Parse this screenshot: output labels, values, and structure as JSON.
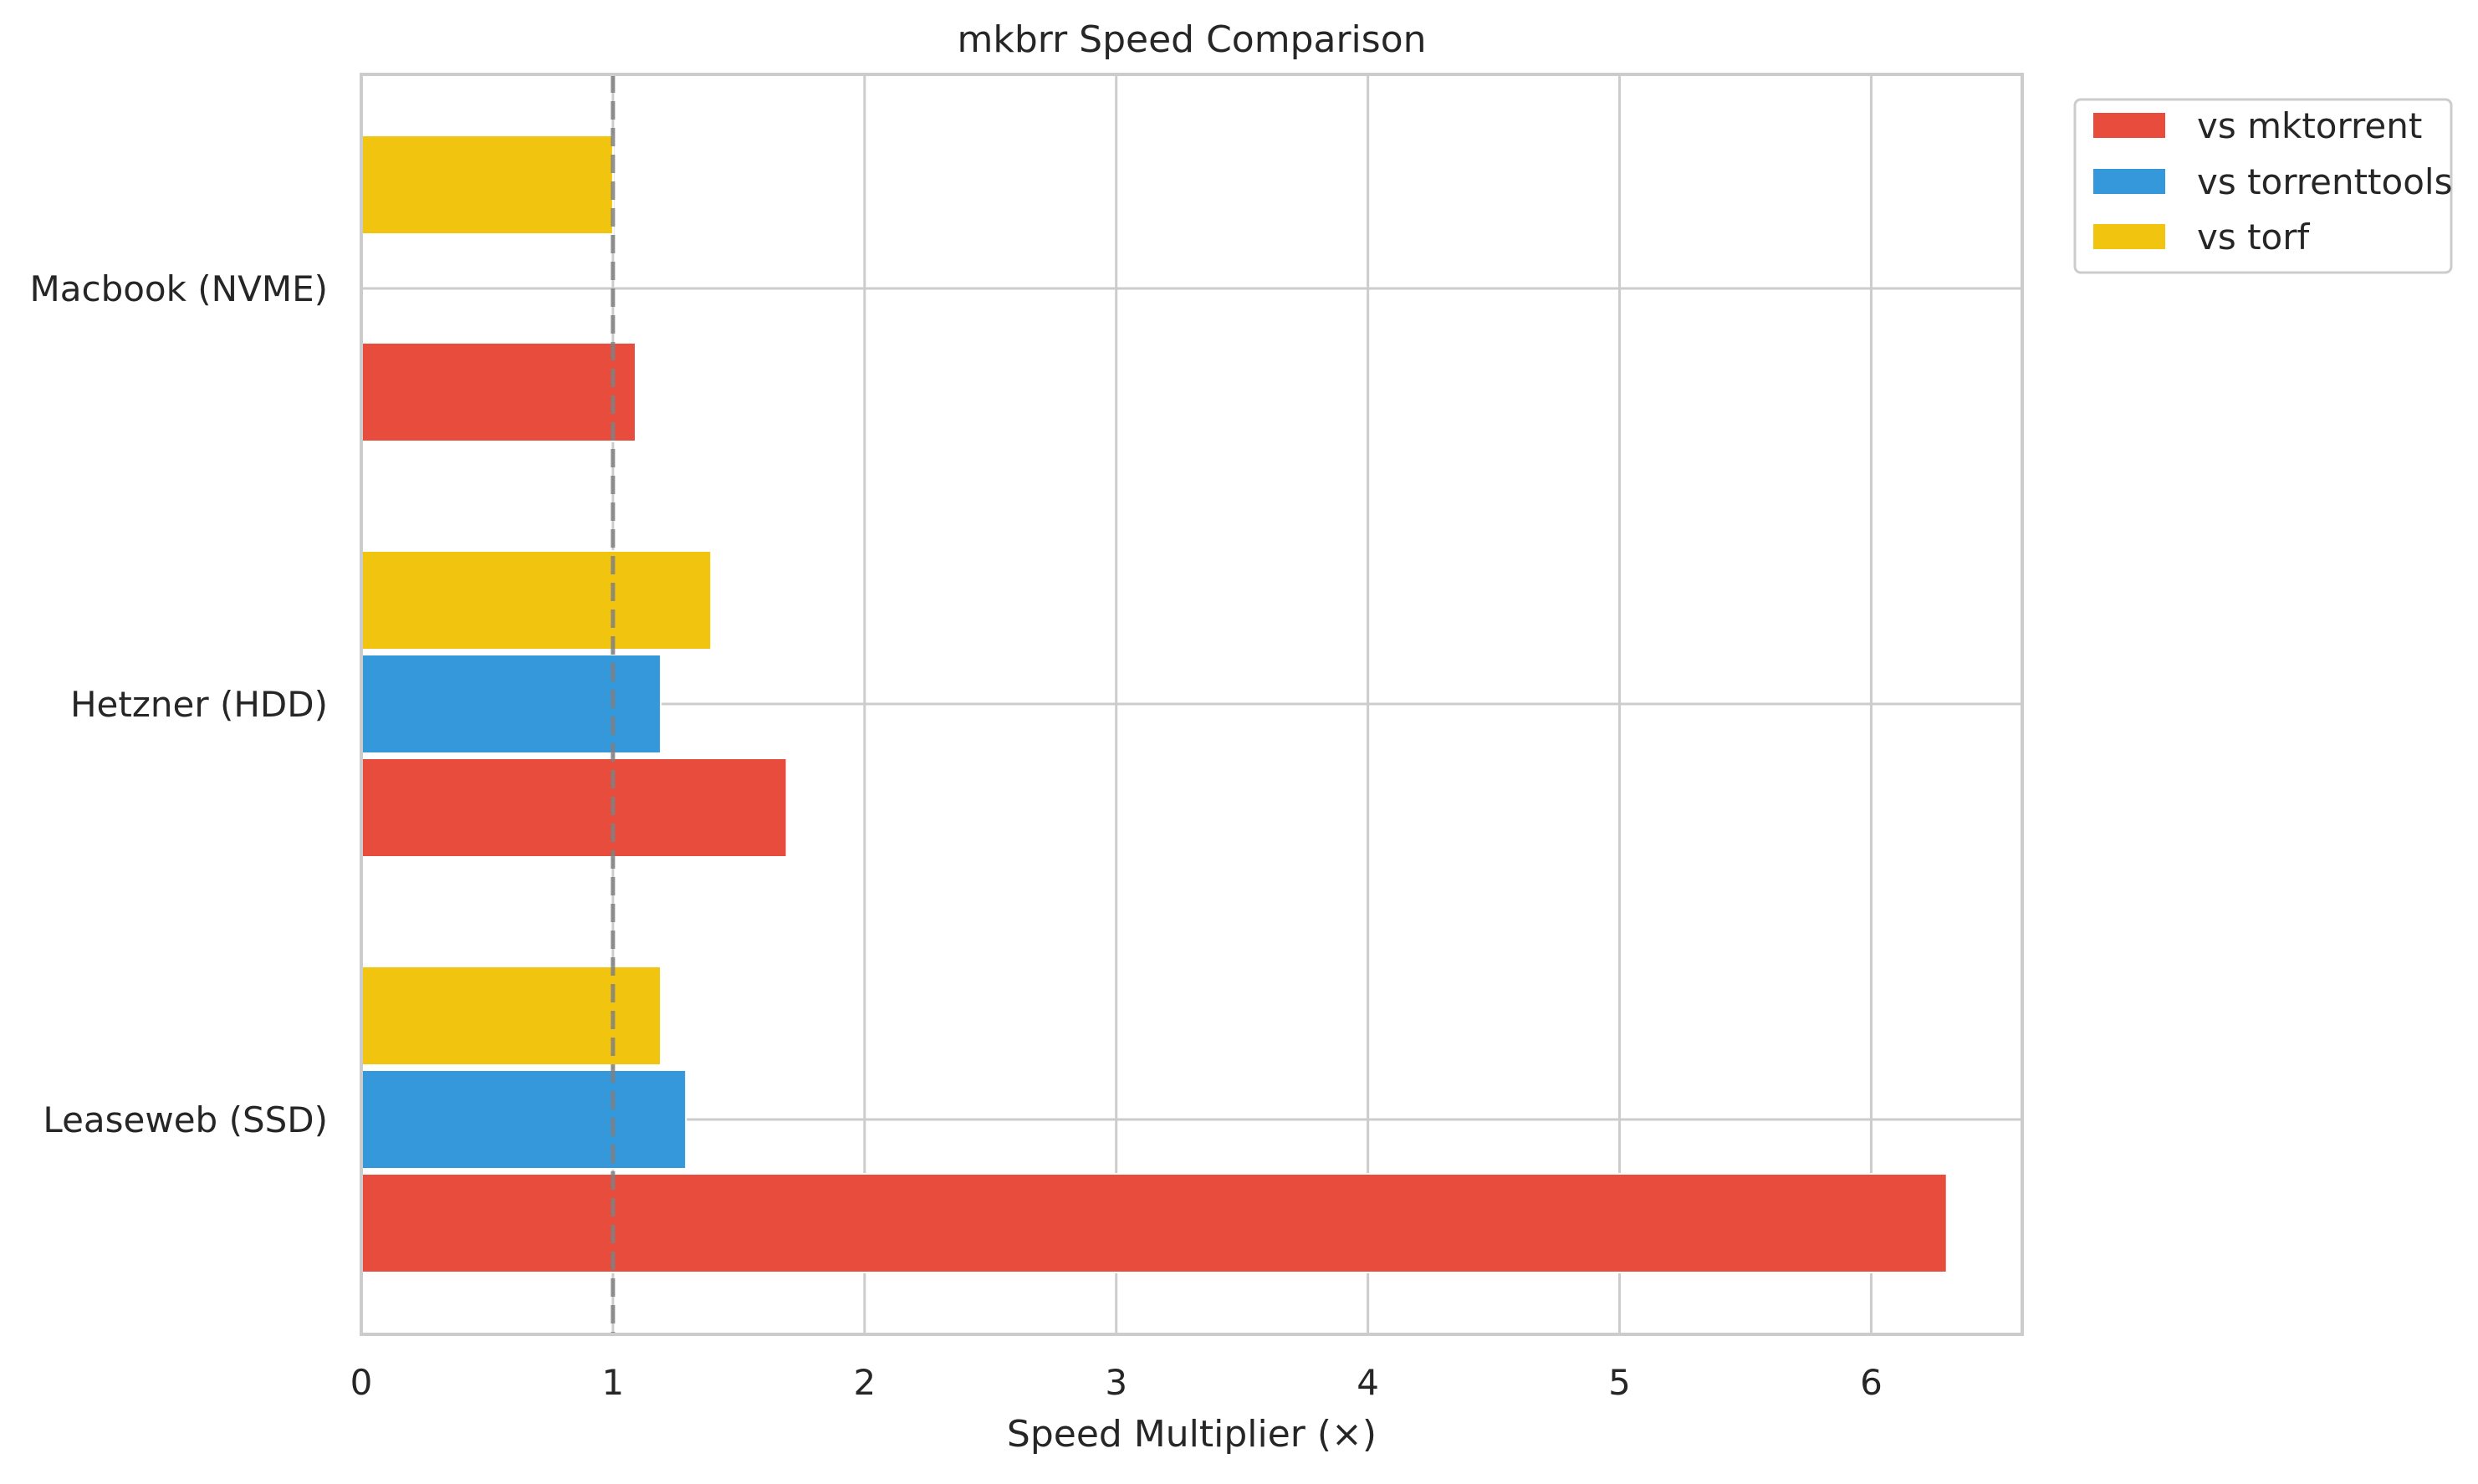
{
  "chart_data": {
    "type": "bar",
    "orientation": "horizontal",
    "title": "mkbrr Speed Comparison",
    "xlabel": "Speed Multiplier (×)",
    "ylabel": "",
    "xlim": [
      0,
      6.6
    ],
    "xticks": [
      "0",
      "1",
      "2",
      "3",
      "4",
      "5",
      "6"
    ],
    "categories": [
      "Macbook (NVME)",
      "Hetzner (HDD)",
      "Leaseweb (SSD)"
    ],
    "series": [
      {
        "name": "vs mktorrent",
        "color": "#e74c3c",
        "values": [
          1.09,
          1.69,
          6.3
        ]
      },
      {
        "name": "vs torrenttools",
        "color": "#3498db",
        "values": [
          null,
          1.19,
          1.29
        ]
      },
      {
        "name": "vs torf",
        "color": "#f1c40f",
        "values": [
          1.0,
          1.39,
          1.19
        ]
      }
    ],
    "reference_line": {
      "value": 1,
      "style": "dashed",
      "color": "#808080"
    },
    "grid": true,
    "legend_position": "top-right outside"
  }
}
